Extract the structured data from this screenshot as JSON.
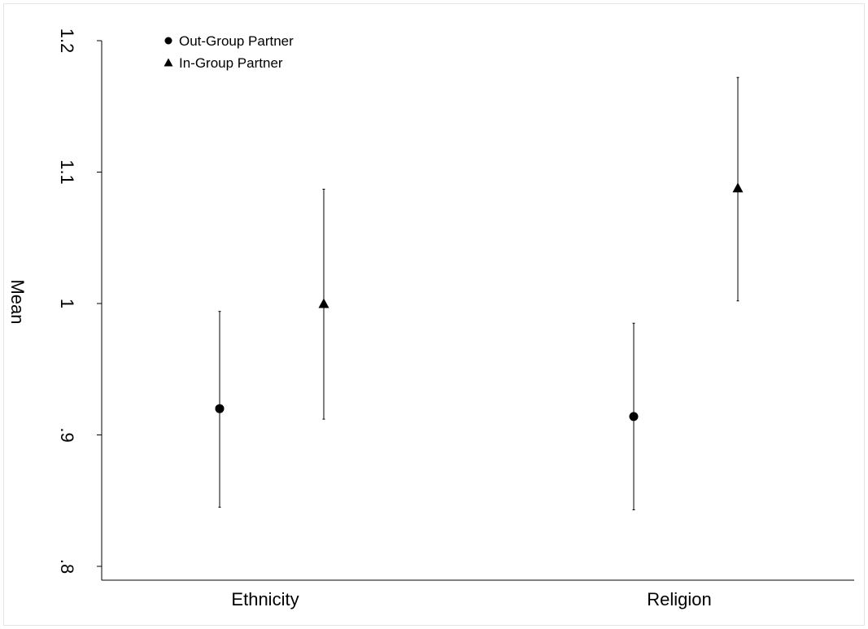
{
  "chart_data": {
    "type": "scatter",
    "ylabel": "Mean",
    "ylim": [
      0.8,
      1.2
    ],
    "yticks": [
      {
        "value": 0.8,
        "label": ".8"
      },
      {
        "value": 0.9,
        "label": ".9"
      },
      {
        "value": 1.0,
        "label": "1"
      },
      {
        "value": 1.1,
        "label": "1.1"
      },
      {
        "value": 1.2,
        "label": "1.2"
      }
    ],
    "categories": [
      "Ethnicity",
      "Religion"
    ],
    "grid": false,
    "legend_position": "top-left",
    "series": [
      {
        "name": "Out-Group Partner",
        "marker": "circle",
        "values": [
          0.92,
          0.914
        ],
        "lower": [
          0.845,
          0.843
        ],
        "upper": [
          0.994,
          0.985
        ]
      },
      {
        "name": "In-Group Partner",
        "marker": "triangle",
        "values": [
          1.0,
          1.088
        ],
        "lower": [
          0.912,
          1.002
        ],
        "upper": [
          1.087,
          1.172
        ]
      }
    ],
    "colors": {
      "marker": "#000000",
      "axis": "#000000",
      "frame": "#e5e5e5",
      "background": "#ffffff"
    }
  }
}
